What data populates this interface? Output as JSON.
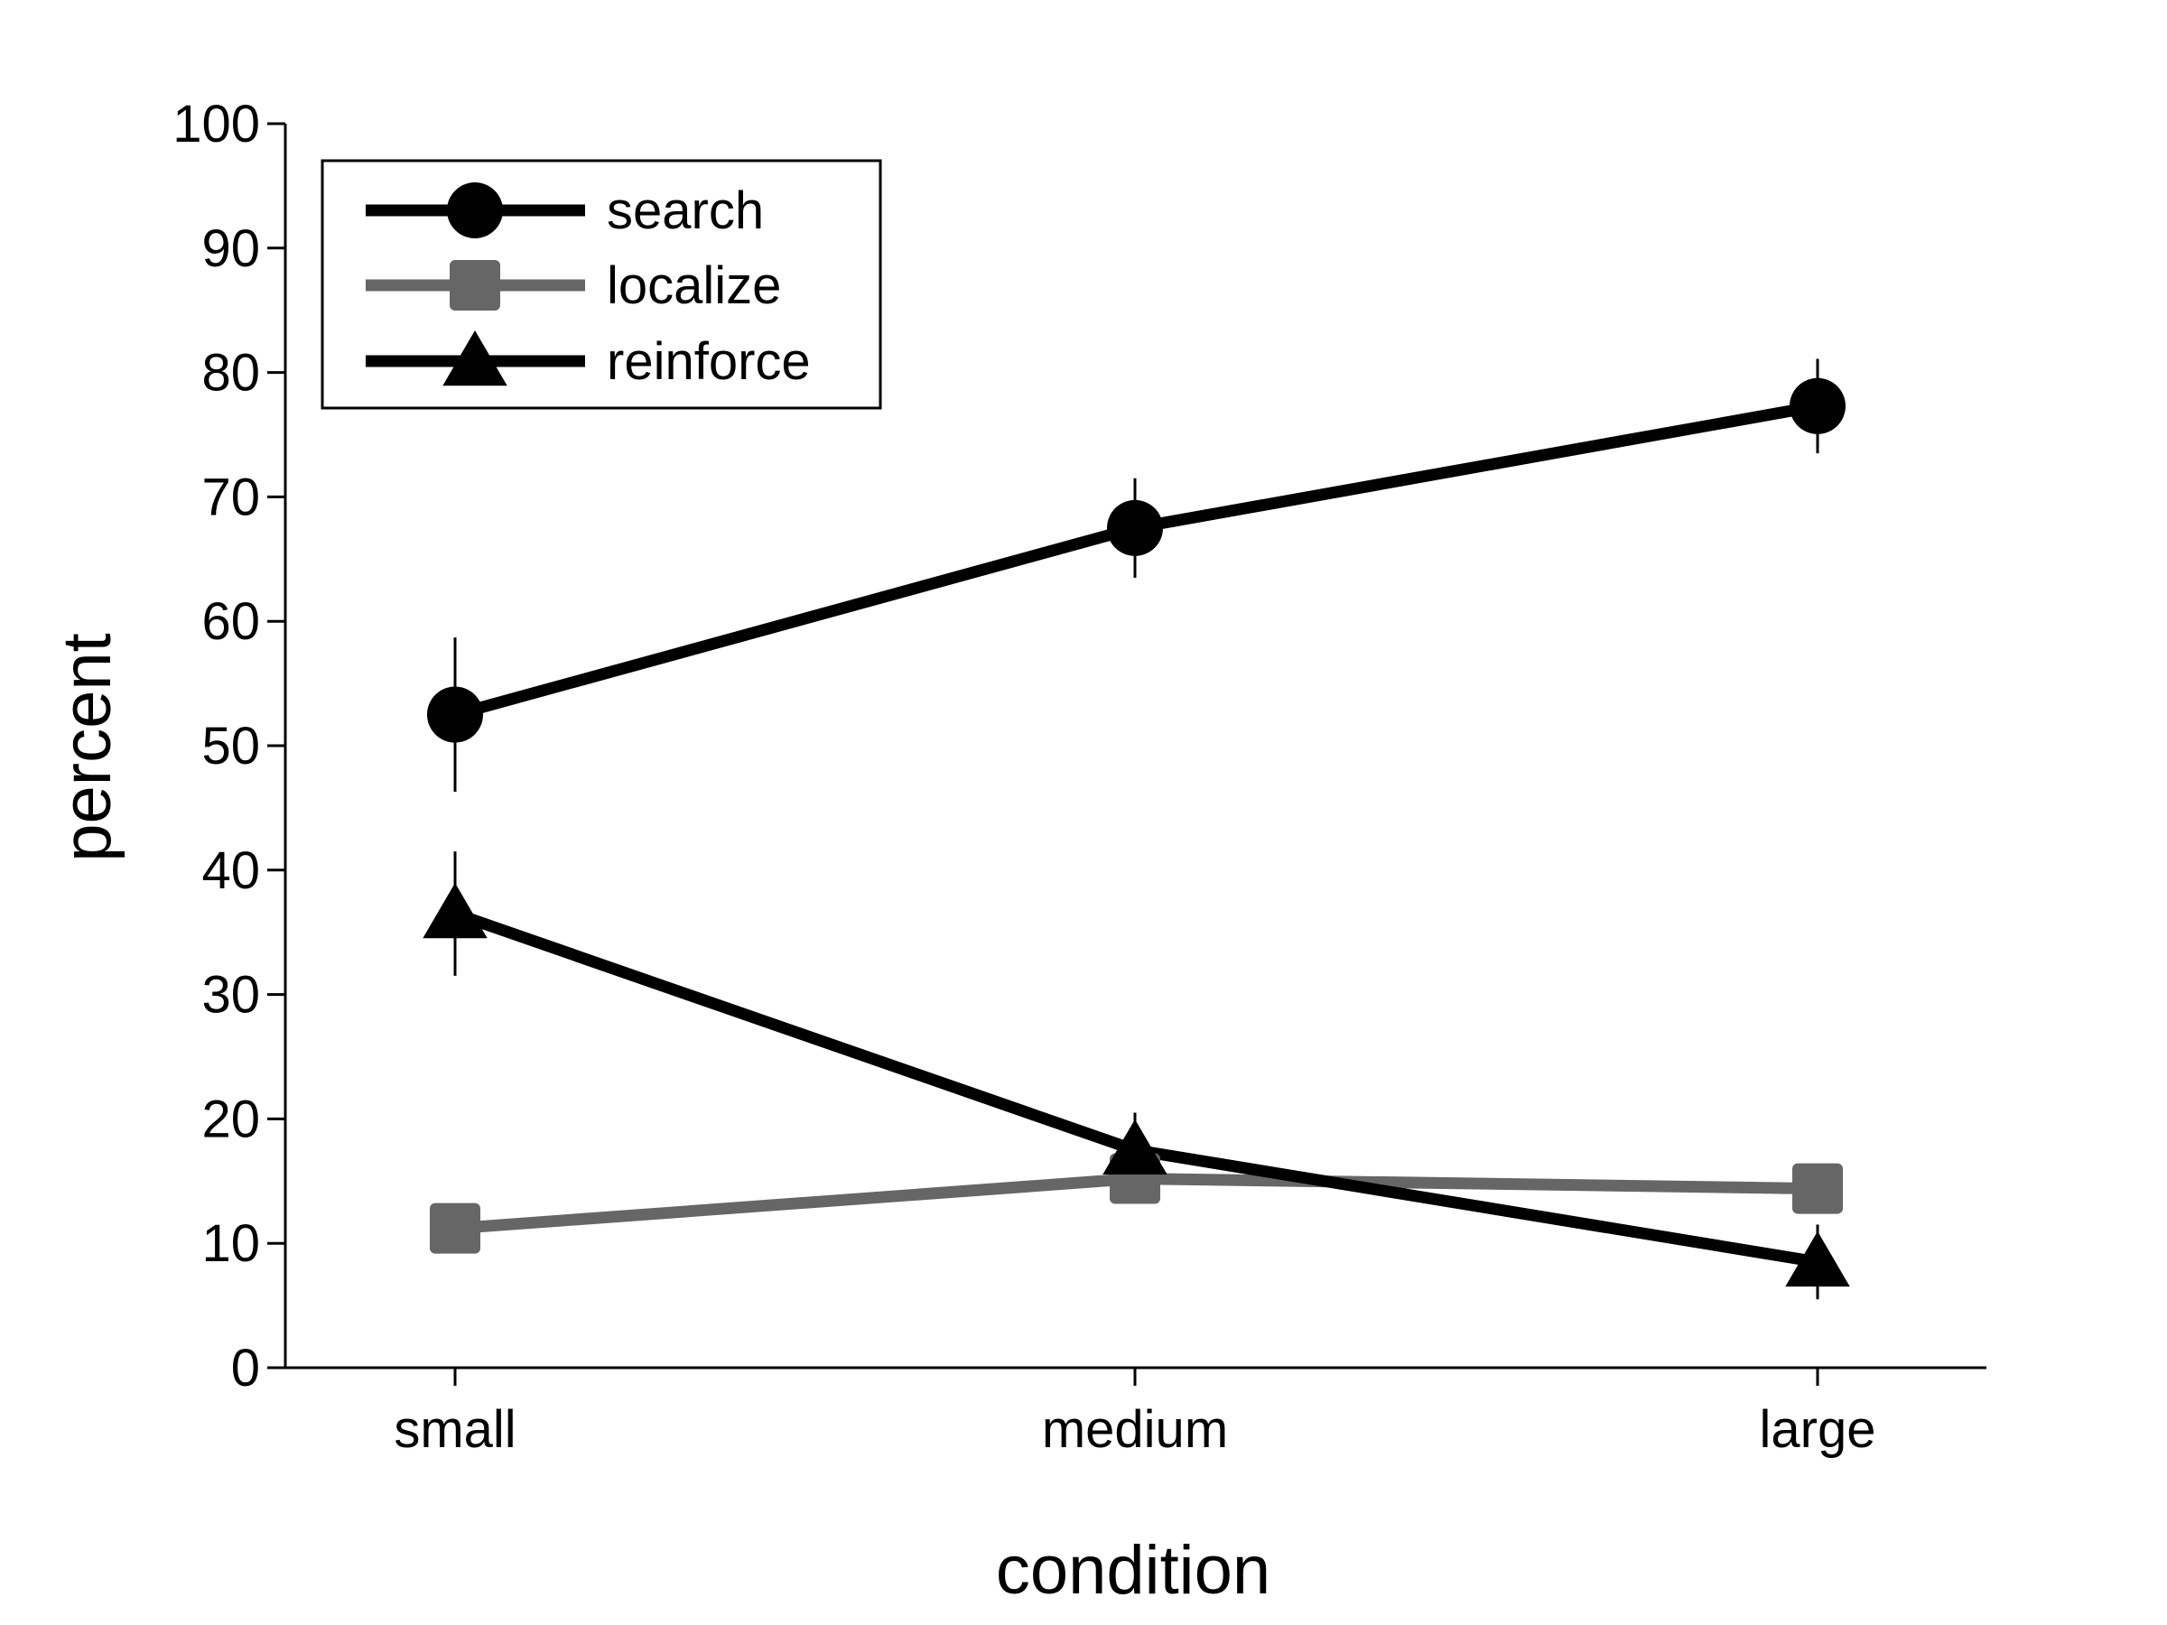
{
  "chart_data": {
    "type": "line",
    "title": "",
    "xlabel": "condition",
    "ylabel": "percent",
    "categories": [
      "small",
      "medium",
      "large"
    ],
    "ylim": [
      0,
      100
    ],
    "yticks": [
      0,
      10,
      20,
      30,
      40,
      50,
      60,
      70,
      80,
      90,
      100
    ],
    "grid": false,
    "legend": "top-left",
    "series": [
      {
        "name": "search",
        "marker": "circle",
        "color": "#000000",
        "values": [
          52.5,
          67.5,
          77.3
        ],
        "error": [
          6.2,
          4.0,
          3.8
        ]
      },
      {
        "name": "localize",
        "marker": "square",
        "color": "#666666",
        "values": [
          11.2,
          15.2,
          14.4
        ],
        "error": [
          1.8,
          1.5,
          1.2
        ]
      },
      {
        "name": "reinforce",
        "marker": "triangle",
        "color": "#000000",
        "values": [
          36.5,
          17.5,
          8.5
        ],
        "error": [
          5.0,
          3.0,
          3.0
        ]
      }
    ]
  }
}
